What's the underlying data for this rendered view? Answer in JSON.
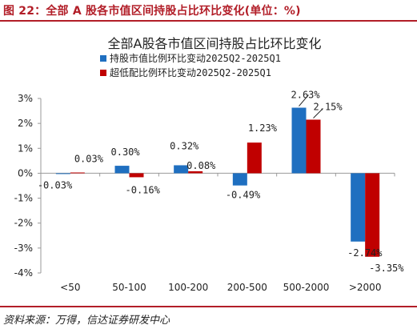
{
  "figure": {
    "title": "图 22：全部 A 股各市值区间持股占比环比变化(单位：%)",
    "source": "资料来源：万得，信达证券研发中心"
  },
  "colors": {
    "accent": "#b21e28",
    "series_blue": "#1f6fc0",
    "series_red": "#c00000"
  },
  "chart_data": {
    "type": "bar",
    "title": "全部A股各市值区间持股占比环比变化",
    "categories": [
      "<50",
      "50-100",
      "100-200",
      "200-500",
      "500-2000",
      ">2000"
    ],
    "series": [
      {
        "name": "持股市值比例环比变动2025Q2-2025Q1",
        "color": "#1f6fc0",
        "values": [
          -0.03,
          0.3,
          0.32,
          -0.49,
          2.63,
          -2.74
        ],
        "labels": [
          "-0.03%",
          "0.30%",
          "0.32%",
          "-0.49%",
          "2.63%",
          "-2.74%"
        ]
      },
      {
        "name": "超低配比例环比变动2025Q2-2025Q1",
        "color": "#c00000",
        "values": [
          0.03,
          -0.16,
          0.08,
          1.23,
          2.15,
          -3.35
        ],
        "labels": [
          "0.03%",
          "-0.16%",
          "0.08%",
          "1.23%",
          "2.15%",
          "-3.35%"
        ]
      }
    ],
    "ylim": [
      -4,
      3
    ],
    "yticks": [
      3,
      2,
      1,
      0,
      -1,
      -2,
      -3,
      -4
    ],
    "ytick_labels": [
      "3%",
      "2%",
      "1%",
      "0%",
      "-1%",
      "-2%",
      "-3%",
      "-4%"
    ],
    "legend_position": "top",
    "grid": false
  }
}
